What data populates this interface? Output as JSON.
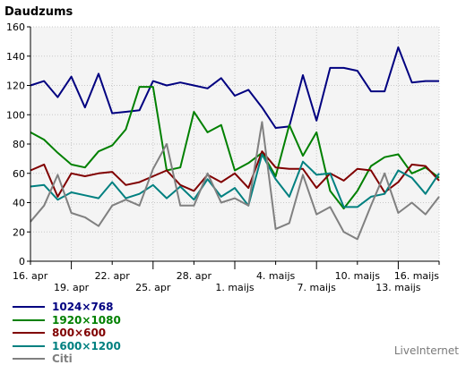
{
  "chart_data": {
    "type": "line",
    "ylabel": "Daudzums",
    "ylim": [
      0,
      160
    ],
    "yticks": [
      0,
      20,
      40,
      60,
      80,
      100,
      120,
      140,
      160
    ],
    "grid": true,
    "legend_position": "bottom-left",
    "x_tick_labels": [
      {
        "i": 0,
        "label": "16. apr",
        "row": 1
      },
      {
        "i": 3,
        "label": "19. apr",
        "row": 2
      },
      {
        "i": 6,
        "label": "22. apr",
        "row": 1
      },
      {
        "i": 9,
        "label": "25. apr",
        "row": 2
      },
      {
        "i": 12,
        "label": "28. apr",
        "row": 1
      },
      {
        "i": 15,
        "label": "1. maijs",
        "row": 2
      },
      {
        "i": 18,
        "label": "4. maijs",
        "row": 1
      },
      {
        "i": 21,
        "label": "7. maijs",
        "row": 2
      },
      {
        "i": 24,
        "label": "10. maijs",
        "row": 1
      },
      {
        "i": 27,
        "label": "13. maijs",
        "row": 2
      },
      {
        "i": 30,
        "label": "16. maijs",
        "row": 1
      }
    ],
    "series": [
      {
        "name": "1024×768",
        "color": "#000080",
        "values": [
          120,
          123,
          112,
          126,
          105,
          128,
          101,
          102,
          103,
          123,
          120,
          122,
          120,
          118,
          125,
          113,
          117,
          105,
          91,
          92,
          127,
          96,
          132,
          132,
          130,
          116,
          116,
          146,
          122,
          123,
          123
        ]
      },
      {
        "name": "1920×1080",
        "color": "#008000",
        "values": [
          88,
          83,
          74,
          66,
          64,
          75,
          79,
          90,
          119,
          119,
          62,
          64,
          102,
          88,
          93,
          62,
          67,
          74,
          58,
          93,
          72,
          88,
          48,
          36,
          48,
          65,
          71,
          73,
          60,
          64,
          57
        ]
      },
      {
        "name": "800×600",
        "color": "#800000",
        "values": [
          62,
          66,
          44,
          60,
          58,
          60,
          61,
          52,
          54,
          58,
          62,
          52,
          48,
          59,
          54,
          60,
          50,
          75,
          64,
          63,
          63,
          50,
          60,
          55,
          63,
          62,
          47,
          54,
          66,
          65,
          55
        ]
      },
      {
        "name": "1600×1200",
        "color": "#008080",
        "values": [
          51,
          52,
          42,
          47,
          45,
          43,
          54,
          43,
          46,
          52,
          43,
          51,
          42,
          56,
          44,
          50,
          38,
          73,
          56,
          44,
          68,
          59,
          60,
          37,
          37,
          44,
          46,
          62,
          57,
          46,
          60
        ]
      },
      {
        "name": "Citi",
        "color": "#808080",
        "values": [
          27,
          38,
          59,
          33,
          30,
          24,
          38,
          42,
          38,
          63,
          80,
          38,
          38,
          60,
          40,
          43,
          38,
          95,
          22,
          26,
          59,
          32,
          37,
          20,
          15,
          38,
          60,
          33,
          40,
          32,
          44
        ]
      }
    ]
  },
  "credit": "LiveInternet"
}
